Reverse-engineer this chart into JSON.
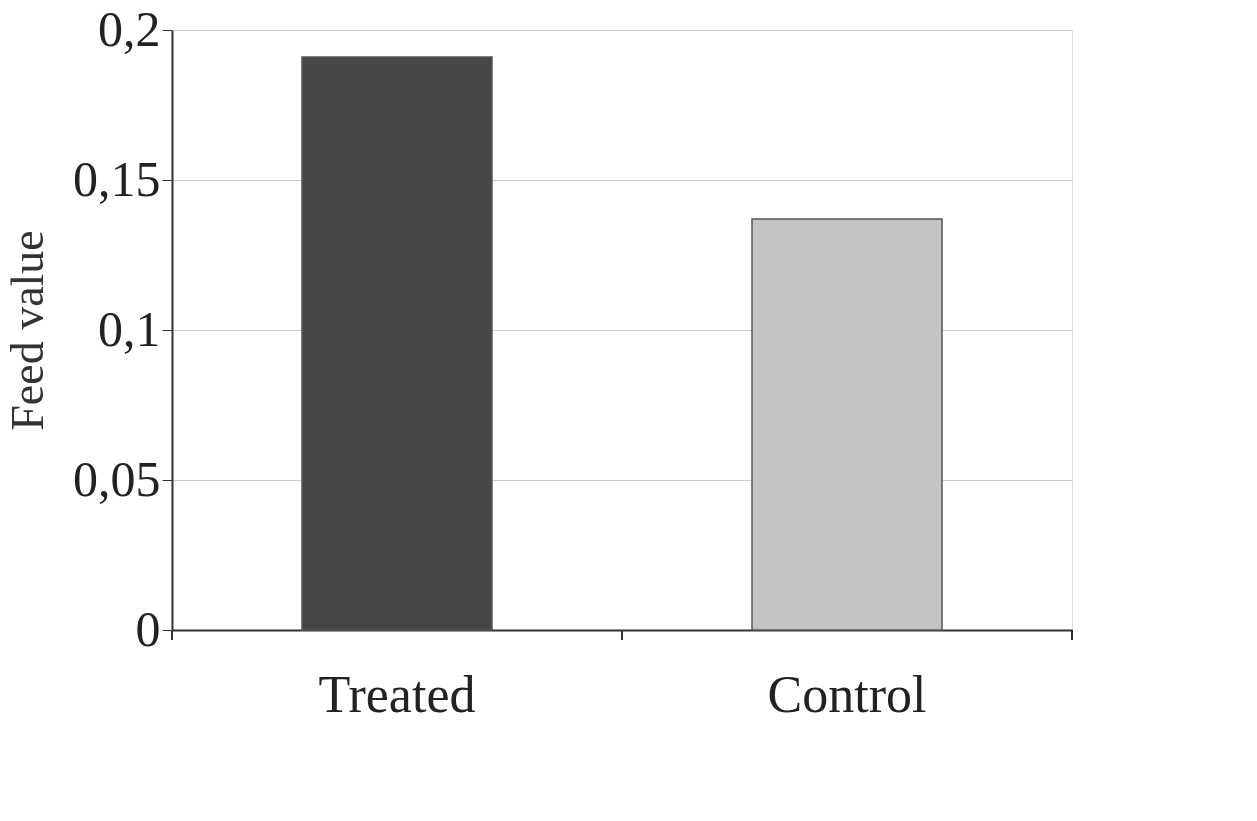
{
  "chart_data": {
    "type": "bar",
    "ylabel": "Feed value",
    "categories": [
      "Treated",
      "Control"
    ],
    "values": [
      0.191,
      0.137
    ],
    "colors": [
      "#474747",
      "#c4c4c4"
    ],
    "ylim": [
      0,
      0.2
    ],
    "yticks": [
      0,
      {
        "value": 0.05,
        "label": "0,05"
      },
      {
        "value": 0.1,
        "label": "0,1"
      },
      {
        "value": 0.15,
        "label": "0,15"
      },
      {
        "value": 0.2,
        "label": "0,2"
      }
    ],
    "grid": "y"
  }
}
